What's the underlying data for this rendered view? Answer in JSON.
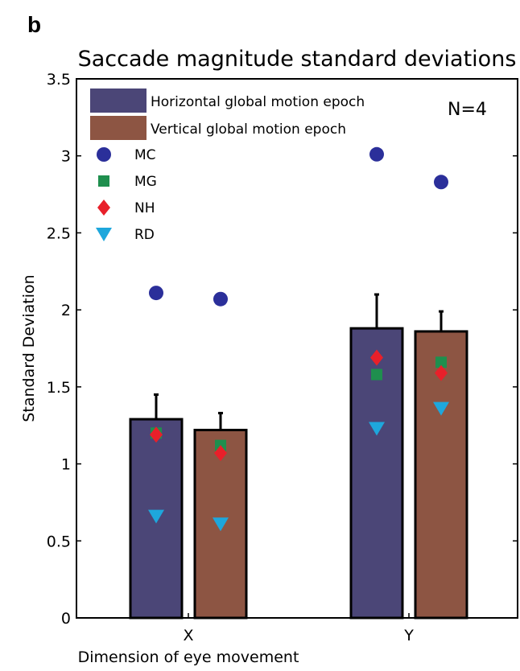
{
  "panel_label": "b",
  "chart_data": {
    "type": "bar",
    "title": "Saccade magnitude standard deviations",
    "xlabel": "Dimension of eye movement",
    "ylabel": "Standard Deviation",
    "ylim": [
      0,
      3.5
    ],
    "yticks": [
      0,
      0.5,
      1,
      1.5,
      2,
      2.5,
      3,
      3.5
    ],
    "ytick_labels": [
      "0",
      "0.5",
      "1",
      "1.5",
      "2",
      "2.5",
      "3",
      "3.5"
    ],
    "categories": [
      "X",
      "Y"
    ],
    "sample_label": "N=4",
    "legend_position": "top-left",
    "grid": false,
    "series": [
      {
        "name": "Horizontal global motion epoch",
        "color": "#4b4677",
        "values": [
          1.29,
          1.88
        ],
        "errors": [
          0.16,
          0.22
        ]
      },
      {
        "name": "Vertical global motion epoch",
        "color": "#8d5543",
        "values": [
          1.22,
          1.86
        ],
        "errors": [
          0.11,
          0.13
        ]
      }
    ],
    "subjects": [
      {
        "name": "MC",
        "marker": "circle",
        "color": "#2b2f9a",
        "values": [
          [
            2.11,
            2.07
          ],
          [
            3.01,
            2.83
          ]
        ]
      },
      {
        "name": "MG",
        "marker": "square",
        "color": "#1f8f4e",
        "values": [
          [
            1.2,
            1.12
          ],
          [
            1.58,
            1.66
          ]
        ]
      },
      {
        "name": "NH",
        "marker": "diamond",
        "color": "#e8202a",
        "values": [
          [
            1.19,
            1.07
          ],
          [
            1.69,
            1.59
          ]
        ]
      },
      {
        "name": "RD",
        "marker": "triangle-down",
        "color": "#1ea7dc",
        "values": [
          [
            0.66,
            0.61
          ],
          [
            1.23,
            1.36
          ]
        ]
      }
    ]
  }
}
